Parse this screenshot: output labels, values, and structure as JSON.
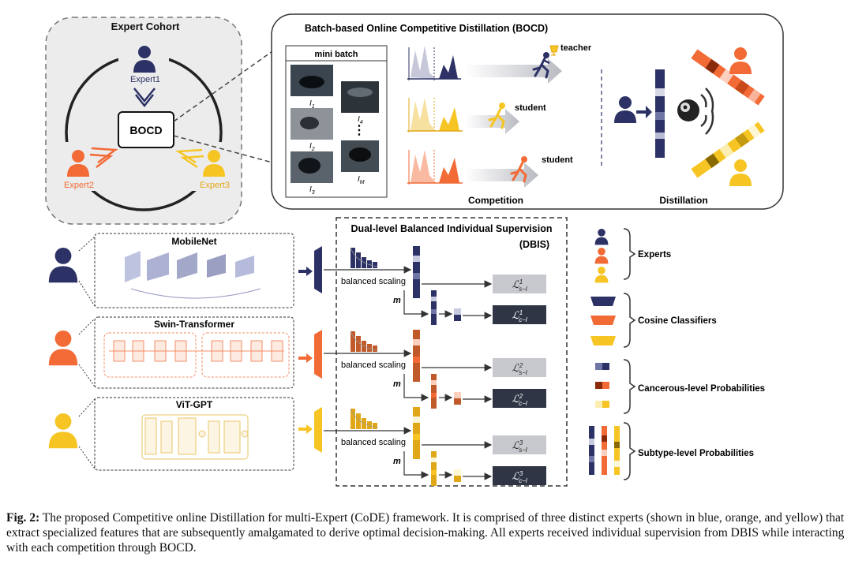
{
  "cohort": {
    "title": "Expert Cohort",
    "expert1": "Expert1",
    "expert2": "Expert2",
    "expert3": "Expert3",
    "center": "BOCD"
  },
  "bocd": {
    "title": "Batch-based Online Competitive Distillation (BOCD)",
    "minibatch": "mini batch",
    "img_labels": [
      "I",
      "1",
      "I",
      "2",
      "I",
      "3",
      "I",
      "4",
      "I",
      "M"
    ],
    "dots": "⋮",
    "teacher": "teacher",
    "student1": "student",
    "student2": "student",
    "competition": "Competition",
    "distillation": "Distillation"
  },
  "backbones": {
    "b1": "MobileNet",
    "b2": "Swin-Transformer",
    "b3": "ViT-GPT"
  },
  "dbis": {
    "title": "Dual-level Balanced Individual Supervision",
    "abbr": "(DBIS)",
    "scaling": "balanced scaling",
    "m": "m"
  },
  "losses": {
    "L": "ℒ",
    "s1": "1",
    "s2": "2",
    "s3": "3",
    "sub_s": "s−l",
    "sub_c": "c−l"
  },
  "legend": {
    "experts": "Experts",
    "classifiers": "Cosine Classifiers",
    "cancer": "Cancerous-level Probabilities",
    "subtype": "Subtype-level Probabilities"
  },
  "caption": {
    "label": "Fig. 2:",
    "text": " The proposed Competitive online Distillation for multi-Expert (CoDE) framework. It is comprised of three distinct experts (shown in blue, orange, and yellow) that extract specialized features that are subsequently amalgamated to derive optimal decision-making. All experts received individual supervision from DBIS while interacting with each competition through BOCD."
  },
  "colors": {
    "blue": "#2d3266",
    "orange": "#f26a35",
    "yellow": "#f6c524",
    "grey": "#c8c9ce",
    "dark": "#2f3545"
  }
}
